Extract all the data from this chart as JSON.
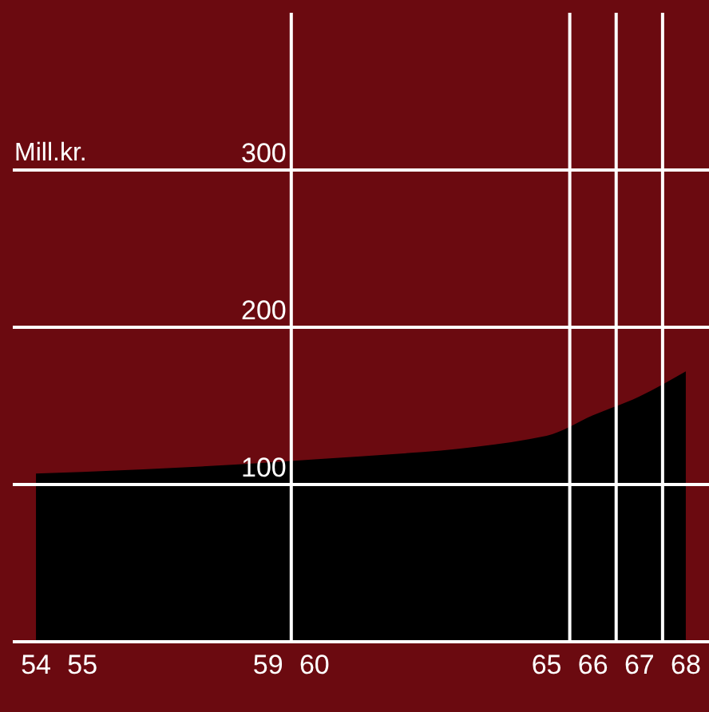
{
  "chart_data": {
    "type": "area",
    "ylabel": "Mill.kr.",
    "x": [
      54,
      55,
      59,
      60,
      65,
      66,
      67,
      68
    ],
    "series": [
      {
        "color": "#000000",
        "values": [
          107,
          108,
          114,
          116,
          131,
          144,
          156,
          172
        ]
      }
    ],
    "xlim": [
      53.5,
      68.5
    ],
    "xticks": [
      54,
      55,
      59,
      60,
      65,
      66,
      67,
      68
    ],
    "ylim": [
      0,
      400
    ],
    "yticks": [
      100,
      200,
      300
    ],
    "grid": "y",
    "ref_lines": [
      {
        "axis": "x",
        "value": 59.5,
        "color": "#ffffff"
      },
      {
        "axis": "x",
        "value": 65.5,
        "color": "#ffffff"
      },
      {
        "axis": "x",
        "value": 66.5,
        "color": "#ffffff"
      },
      {
        "axis": "x",
        "value": 67.5,
        "color": "#ffffff"
      }
    ]
  }
}
